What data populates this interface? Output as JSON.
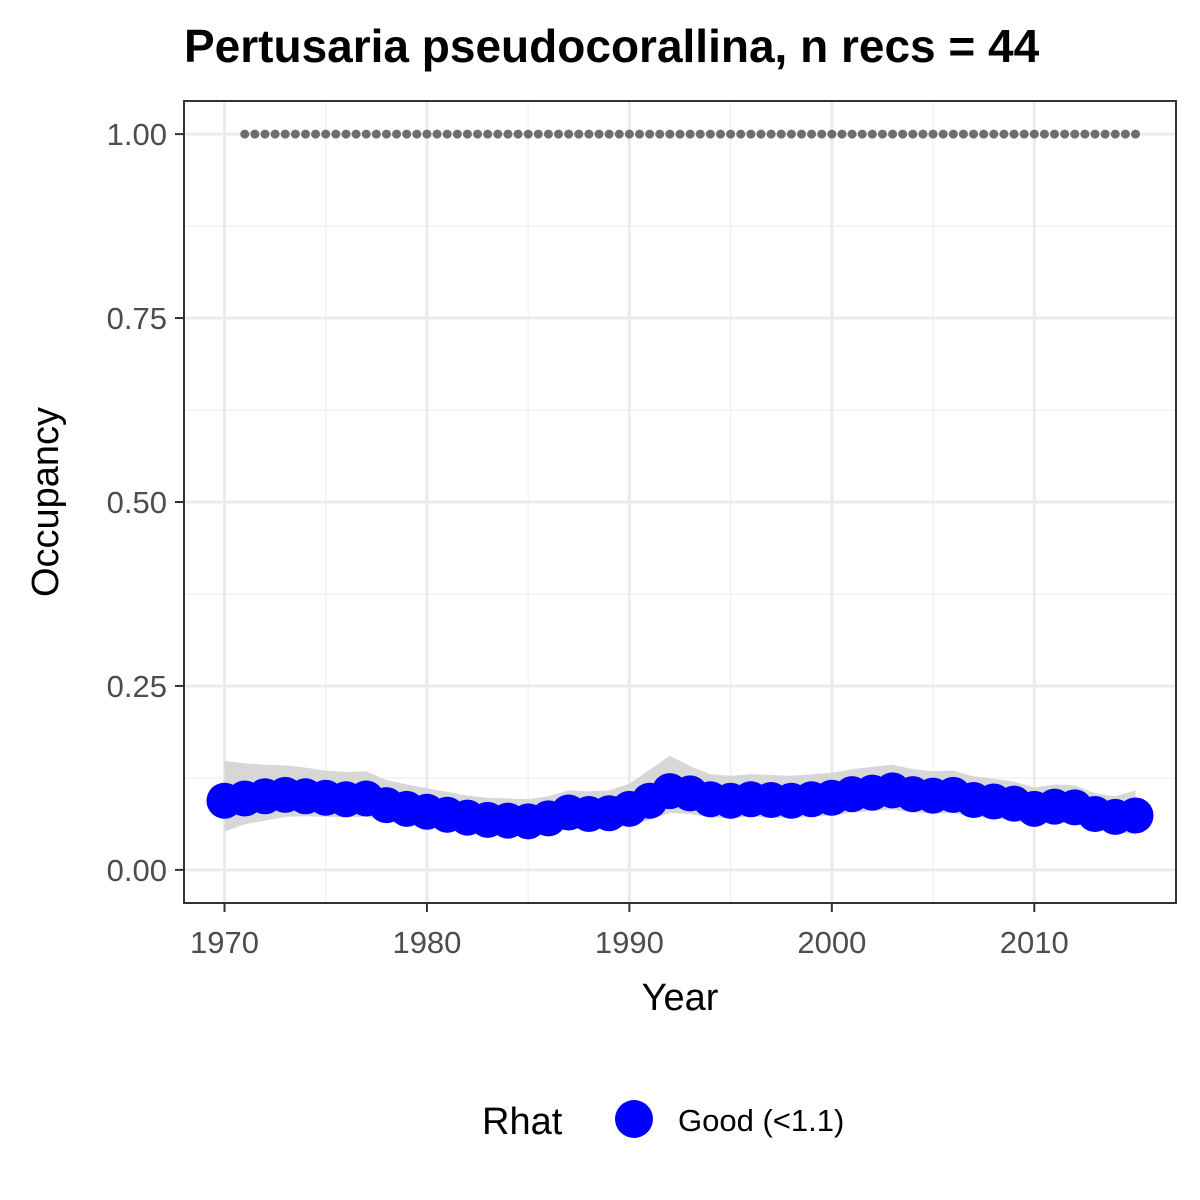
{
  "chart_data": {
    "type": "line",
    "title": "Pertusaria pseudocorallina, n recs = 44",
    "xlabel": "Year",
    "ylabel": "Occupancy",
    "xlim": [
      1968,
      2017
    ],
    "ylim": [
      -0.045,
      1.045
    ],
    "x_ticks": [
      1970,
      1980,
      1990,
      2000,
      2010
    ],
    "x_tick_labels": [
      "1970",
      "1980",
      "1990",
      "2000",
      "2010"
    ],
    "y_ticks": [
      0,
      0.25,
      0.5,
      0.75,
      1
    ],
    "y_tick_labels": [
      "0.00",
      "0.25",
      "0.50",
      "0.75",
      "1.00"
    ],
    "grid": true,
    "legend": {
      "title": "Rhat",
      "position": "bottom",
      "entries": [
        {
          "label": "Good (<1.1)",
          "color": "#0000ff"
        }
      ]
    },
    "series": [
      {
        "name": "Good (<1.1)",
        "color": "#0000ff",
        "x": [
          1970,
          1971,
          1972,
          1973,
          1974,
          1975,
          1976,
          1977,
          1978,
          1979,
          1980,
          1981,
          1982,
          1983,
          1984,
          1985,
          1986,
          1987,
          1988,
          1989,
          1990,
          1991,
          1992,
          1993,
          1994,
          1995,
          1996,
          1997,
          1998,
          1999,
          2000,
          2001,
          2002,
          2003,
          2004,
          2005,
          2006,
          2007,
          2008,
          2009,
          2010,
          2011,
          2012,
          2013,
          2014,
          2015
        ],
        "y": [
          0.094,
          0.097,
          0.1,
          0.102,
          0.1,
          0.098,
          0.096,
          0.097,
          0.088,
          0.083,
          0.079,
          0.075,
          0.071,
          0.068,
          0.067,
          0.066,
          0.07,
          0.078,
          0.076,
          0.077,
          0.083,
          0.094,
          0.107,
          0.104,
          0.096,
          0.094,
          0.096,
          0.095,
          0.094,
          0.096,
          0.098,
          0.103,
          0.105,
          0.108,
          0.103,
          0.101,
          0.102,
          0.095,
          0.093,
          0.09,
          0.083,
          0.086,
          0.085,
          0.076,
          0.072,
          0.074
        ],
        "lower": [
          0.052,
          0.062,
          0.067,
          0.072,
          0.073,
          0.072,
          0.071,
          0.072,
          0.066,
          0.062,
          0.058,
          0.055,
          0.051,
          0.049,
          0.048,
          0.047,
          0.05,
          0.056,
          0.055,
          0.056,
          0.06,
          0.068,
          0.077,
          0.076,
          0.071,
          0.07,
          0.072,
          0.071,
          0.07,
          0.072,
          0.074,
          0.078,
          0.08,
          0.082,
          0.078,
          0.077,
          0.077,
          0.072,
          0.07,
          0.067,
          0.062,
          0.064,
          0.063,
          0.056,
          0.052,
          0.048
        ],
        "upper": [
          0.148,
          0.145,
          0.143,
          0.142,
          0.139,
          0.135,
          0.133,
          0.134,
          0.122,
          0.116,
          0.111,
          0.106,
          0.101,
          0.098,
          0.097,
          0.096,
          0.1,
          0.108,
          0.107,
          0.108,
          0.117,
          0.136,
          0.155,
          0.141,
          0.13,
          0.128,
          0.13,
          0.129,
          0.128,
          0.13,
          0.132,
          0.137,
          0.14,
          0.143,
          0.137,
          0.134,
          0.135,
          0.127,
          0.124,
          0.12,
          0.112,
          0.116,
          0.115,
          0.104,
          0.1,
          0.108
        ]
      },
      {
        "name": "",
        "style": "dotted",
        "color": "#6e6e6e",
        "x": [
          1971,
          2015
        ],
        "y": [
          1.0,
          1.0
        ]
      }
    ]
  }
}
